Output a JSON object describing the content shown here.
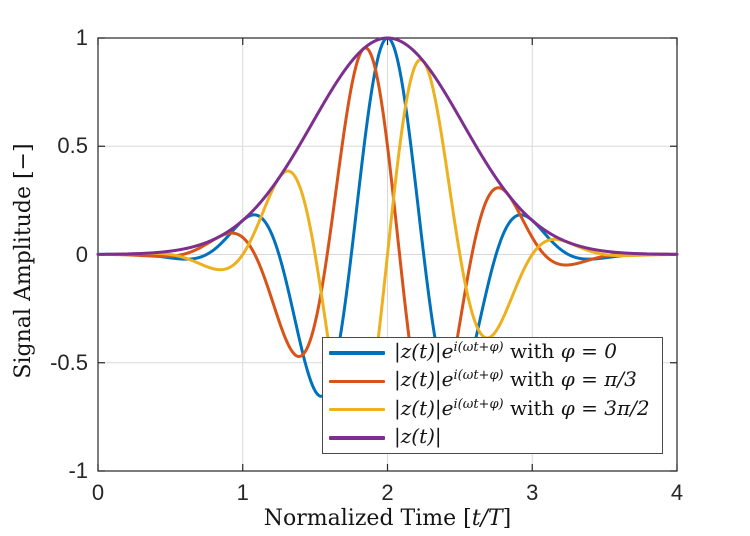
{
  "chart_data": {
    "type": "line",
    "title": "",
    "xlabel": "Normalized Time [t/T]",
    "xlabel_parts": {
      "pre": "Normalized Time [",
      "math": "t/T",
      "post": "]"
    },
    "ylabel": "Signal Amplitude [−]",
    "xlim": [
      0,
      4
    ],
    "ylim": [
      -1,
      1
    ],
    "xticks": [
      0,
      1,
      2,
      3,
      4
    ],
    "xtick_labels": [
      "0",
      "1",
      "2",
      "3",
      "4"
    ],
    "yticks": [
      -1,
      -0.5,
      0,
      0.5,
      1
    ],
    "ytick_labels": [
      "-1",
      "-0.5",
      "0",
      "0.5",
      "1"
    ],
    "grid": true,
    "axis_color": "#262626",
    "grid_color": "#d9d9d9",
    "legend_position": "inside-bottom-right",
    "model": {
      "description": "Gabor pulse. Envelope |z(t)| = exp(-(t-center)^2/(2*sigma^2)); modulated series y(t) = |z(t)|*cos(omega*t + phi)",
      "center": 2,
      "sigma": 0.52,
      "omega_rad_per_unit": 6.28319
    },
    "envelope_samples": {
      "t": [
        0,
        0.25,
        0.5,
        0.75,
        1.0,
        1.25,
        1.5,
        1.75,
        2.0,
        2.25,
        2.5,
        2.75,
        3.0,
        3.25,
        3.5,
        3.75,
        4.0
      ],
      "y": [
        0.0006,
        0.0035,
        0.0156,
        0.0556,
        0.1574,
        0.3534,
        0.6298,
        0.8908,
        1.0,
        0.8908,
        0.6298,
        0.3534,
        0.1574,
        0.0556,
        0.0156,
        0.0035,
        0.0006
      ]
    },
    "series": [
      {
        "name": "|z(t)|e^i(ωt+φ) with φ = 0",
        "color": "#0072BD",
        "type": "modulated",
        "phase_rad": 0,
        "phase_label": "0"
      },
      {
        "name": "|z(t)|e^i(ωt+φ) with φ = π/3",
        "color": "#D95319",
        "type": "modulated",
        "phase_rad": 1.0472,
        "phase_label": "π/3"
      },
      {
        "name": "|z(t)|e^i(ωt+φ) with φ = 3π/2",
        "color": "#EDB120",
        "type": "modulated",
        "phase_rad": 4.7124,
        "phase_label": "3π/2"
      },
      {
        "name": "|z(t)|",
        "color": "#7E2F8E",
        "type": "envelope",
        "phase_rad": null,
        "phase_label": ""
      }
    ],
    "legend": {
      "items": [
        {
          "pre": "|z(t)|e",
          "sup": "i(ωt+φ)",
          "mid": " with ",
          "val": "φ = 0"
        },
        {
          "pre": "|z(t)|e",
          "sup": "i(ωt+φ)",
          "mid": " with ",
          "val": "φ = π/3"
        },
        {
          "pre": "|z(t)|e",
          "sup": "i(ωt+φ)",
          "mid": " with ",
          "val": "φ = 3π/2"
        },
        {
          "pre": "|z(t)|",
          "sup": "",
          "mid": "",
          "val": ""
        }
      ]
    }
  }
}
